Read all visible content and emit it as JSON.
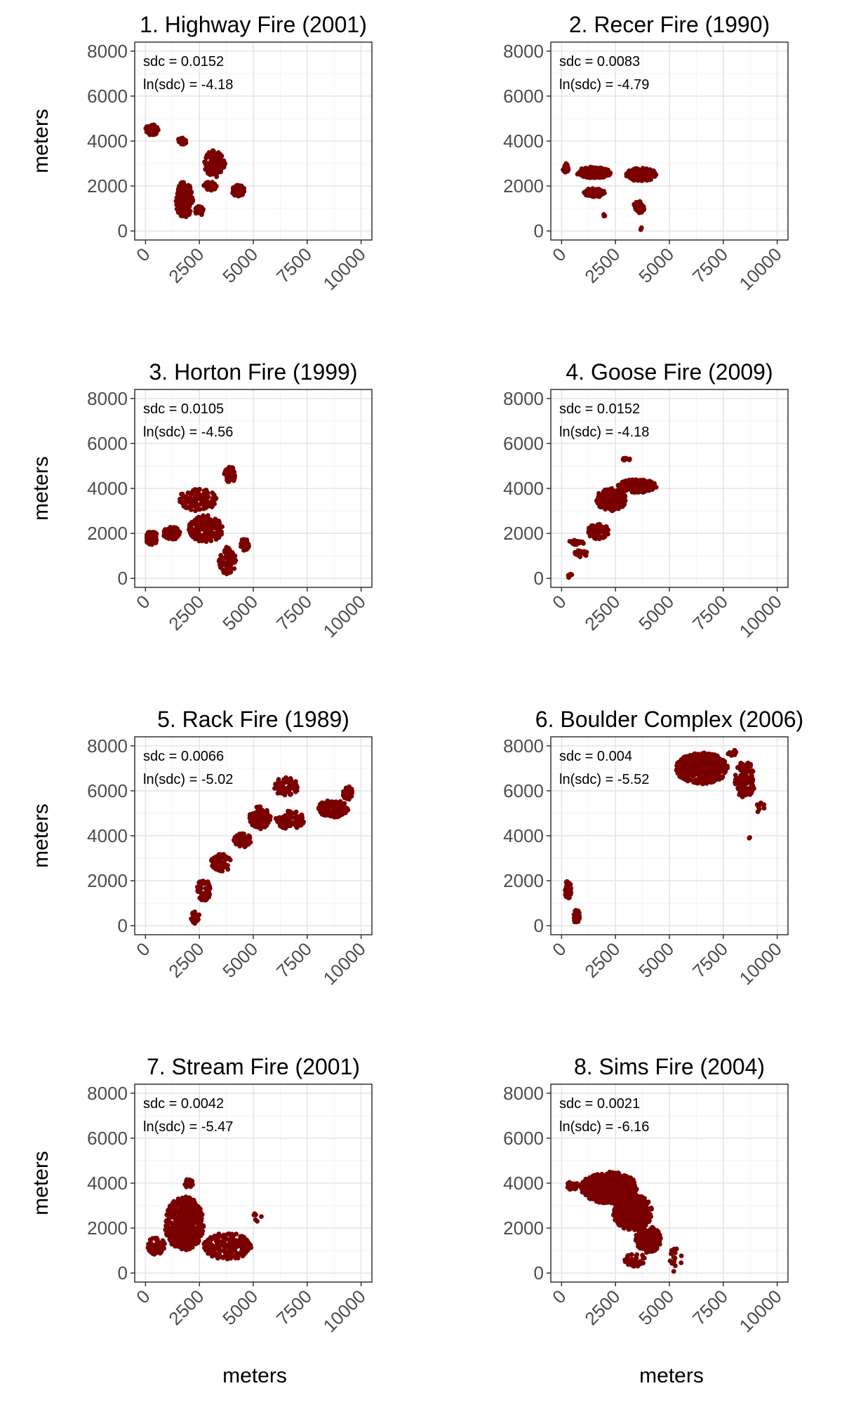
{
  "figure": {
    "axis_label": "meters",
    "ylabel": "meters"
  },
  "colors": {
    "points": "#7a0000",
    "panel_border": "#333333",
    "grid_major": "#e6e6e6",
    "grid_minor": "#f2f2f2",
    "text": "#000000",
    "tick_text": "#4d4d4d"
  },
  "chart_data": [
    {
      "type": "scatter",
      "title": "1. Highway Fire (2001)",
      "annotations": [
        "sdc = 0.0152",
        "ln(sdc) =  -4.18"
      ],
      "xlim": [
        -500,
        10500
      ],
      "ylim": [
        -400,
        8400
      ],
      "xticks": [
        0,
        2500,
        5000,
        7500,
        10000
      ],
      "yticks": [
        0,
        2000,
        4000,
        6000,
        8000
      ],
      "grid": true,
      "clusters": [
        {
          "cx": 300,
          "cy": 4500,
          "rx": 300,
          "ry": 250,
          "n": 60
        },
        {
          "cx": 1700,
          "cy": 4000,
          "rx": 200,
          "ry": 150,
          "n": 30
        },
        {
          "cx": 3200,
          "cy": 3000,
          "rx": 500,
          "ry": 600,
          "n": 110
        },
        {
          "cx": 4300,
          "cy": 1800,
          "rx": 300,
          "ry": 250,
          "n": 70
        },
        {
          "cx": 1800,
          "cy": 1400,
          "rx": 400,
          "ry": 800,
          "n": 140
        },
        {
          "cx": 3000,
          "cy": 2000,
          "rx": 300,
          "ry": 200,
          "n": 40
        },
        {
          "cx": 2500,
          "cy": 900,
          "rx": 200,
          "ry": 200,
          "n": 30
        }
      ]
    },
    {
      "type": "scatter",
      "title": "2. Recer Fire (1990)",
      "annotations": [
        "sdc = 0.0083",
        "ln(sdc) =  -4.79"
      ],
      "xlim": [
        -500,
        10500
      ],
      "ylim": [
        -400,
        8400
      ],
      "xticks": [
        0,
        2500,
        5000,
        7500,
        10000
      ],
      "yticks": [
        0,
        2000,
        4000,
        6000,
        8000
      ],
      "grid": true,
      "clusters": [
        {
          "cx": 200,
          "cy": 2800,
          "rx": 150,
          "ry": 200,
          "n": 30
        },
        {
          "cx": 1500,
          "cy": 2600,
          "rx": 800,
          "ry": 250,
          "n": 140
        },
        {
          "cx": 1500,
          "cy": 1700,
          "rx": 500,
          "ry": 200,
          "n": 60
        },
        {
          "cx": 3700,
          "cy": 2500,
          "rx": 700,
          "ry": 300,
          "n": 120
        },
        {
          "cx": 3600,
          "cy": 1100,
          "rx": 250,
          "ry": 300,
          "n": 30
        },
        {
          "cx": 2000,
          "cy": 700,
          "rx": 60,
          "ry": 60,
          "n": 3
        },
        {
          "cx": 3700,
          "cy": 100,
          "rx": 50,
          "ry": 50,
          "n": 2
        }
      ]
    },
    {
      "type": "scatter",
      "title": "3. Horton Fire (1999)",
      "annotations": [
        "sdc = 0.0105",
        "ln(sdc) =  -4.56"
      ],
      "xlim": [
        -500,
        10500
      ],
      "ylim": [
        -400,
        8400
      ],
      "xticks": [
        0,
        2500,
        5000,
        7500,
        10000
      ],
      "yticks": [
        0,
        2000,
        4000,
        6000,
        8000
      ],
      "grid": true,
      "clusters": [
        {
          "cx": 300,
          "cy": 1800,
          "rx": 300,
          "ry": 300,
          "n": 60
        },
        {
          "cx": 1200,
          "cy": 2000,
          "rx": 400,
          "ry": 300,
          "n": 50
        },
        {
          "cx": 2400,
          "cy": 3500,
          "rx": 900,
          "ry": 500,
          "n": 120
        },
        {
          "cx": 2800,
          "cy": 2200,
          "rx": 800,
          "ry": 600,
          "n": 160
        },
        {
          "cx": 3900,
          "cy": 4600,
          "rx": 250,
          "ry": 400,
          "n": 50
        },
        {
          "cx": 3800,
          "cy": 800,
          "rx": 400,
          "ry": 600,
          "n": 80
        },
        {
          "cx": 4600,
          "cy": 1500,
          "rx": 200,
          "ry": 300,
          "n": 30
        }
      ]
    },
    {
      "type": "scatter",
      "title": "4. Goose Fire (2009)",
      "annotations": [
        "sdc = 0.0152",
        "ln(sdc) =  -4.18"
      ],
      "xlim": [
        -500,
        10500
      ],
      "ylim": [
        -400,
        8400
      ],
      "xticks": [
        0,
        2500,
        5000,
        7500,
        10000
      ],
      "yticks": [
        0,
        2000,
        4000,
        6000,
        8000
      ],
      "grid": true,
      "clusters": [
        {
          "cx": 2300,
          "cy": 3500,
          "rx": 700,
          "ry": 500,
          "n": 220
        },
        {
          "cx": 3500,
          "cy": 4100,
          "rx": 900,
          "ry": 300,
          "n": 150
        },
        {
          "cx": 1700,
          "cy": 2100,
          "rx": 500,
          "ry": 350,
          "n": 90
        },
        {
          "cx": 700,
          "cy": 1600,
          "rx": 400,
          "ry": 100,
          "n": 30
        },
        {
          "cx": 900,
          "cy": 1100,
          "rx": 300,
          "ry": 150,
          "n": 25
        },
        {
          "cx": 3000,
          "cy": 5300,
          "rx": 200,
          "ry": 60,
          "n": 10
        },
        {
          "cx": 400,
          "cy": 100,
          "rx": 100,
          "ry": 100,
          "n": 6
        }
      ]
    },
    {
      "type": "scatter",
      "title": "5. Rack Fire (1989)",
      "annotations": [
        "sdc = 0.0066",
        "ln(sdc) =  -5.02"
      ],
      "xlim": [
        -500,
        10500
      ],
      "ylim": [
        -400,
        8400
      ],
      "xticks": [
        0,
        2500,
        5000,
        7500,
        10000
      ],
      "yticks": [
        0,
        2000,
        4000,
        6000,
        8000
      ],
      "grid": true,
      "clusters": [
        {
          "cx": 2300,
          "cy": 400,
          "rx": 200,
          "ry": 300,
          "n": 30
        },
        {
          "cx": 2700,
          "cy": 1600,
          "rx": 300,
          "ry": 600,
          "n": 60
        },
        {
          "cx": 3500,
          "cy": 2800,
          "rx": 500,
          "ry": 400,
          "n": 70
        },
        {
          "cx": 4500,
          "cy": 3800,
          "rx": 400,
          "ry": 300,
          "n": 60
        },
        {
          "cx": 5300,
          "cy": 4800,
          "rx": 500,
          "ry": 500,
          "n": 110
        },
        {
          "cx": 6700,
          "cy": 4700,
          "rx": 700,
          "ry": 400,
          "n": 90
        },
        {
          "cx": 6500,
          "cy": 6200,
          "rx": 600,
          "ry": 400,
          "n": 70
        },
        {
          "cx": 8700,
          "cy": 5200,
          "rx": 700,
          "ry": 400,
          "n": 130
        },
        {
          "cx": 9400,
          "cy": 5900,
          "rx": 250,
          "ry": 300,
          "n": 40
        }
      ]
    },
    {
      "type": "scatter",
      "title": "6. Boulder Complex (2006)",
      "annotations": [
        "sdc = 0.004",
        "ln(sdc) =  -5.52"
      ],
      "xlim": [
        -500,
        10500
      ],
      "ylim": [
        -400,
        8400
      ],
      "xticks": [
        0,
        2500,
        5000,
        7500,
        10000
      ],
      "yticks": [
        0,
        2000,
        4000,
        6000,
        8000
      ],
      "grid": true,
      "clusters": [
        {
          "cx": 6500,
          "cy": 7000,
          "rx": 1200,
          "ry": 700,
          "n": 400
        },
        {
          "cx": 8500,
          "cy": 6500,
          "rx": 500,
          "ry": 800,
          "n": 120
        },
        {
          "cx": 7900,
          "cy": 7700,
          "rx": 200,
          "ry": 150,
          "n": 15
        },
        {
          "cx": 9200,
          "cy": 5300,
          "rx": 200,
          "ry": 300,
          "n": 8
        },
        {
          "cx": 8700,
          "cy": 3900,
          "rx": 40,
          "ry": 40,
          "n": 2
        },
        {
          "cx": 300,
          "cy": 1600,
          "rx": 150,
          "ry": 400,
          "n": 50
        },
        {
          "cx": 700,
          "cy": 400,
          "rx": 150,
          "ry": 300,
          "n": 35
        }
      ]
    },
    {
      "type": "scatter",
      "title": "7. Stream Fire (2001)",
      "annotations": [
        "sdc = 0.0042",
        "ln(sdc) =  -5.47"
      ],
      "xlim": [
        -500,
        10500
      ],
      "ylim": [
        -400,
        8400
      ],
      "xticks": [
        0,
        2500,
        5000,
        7500,
        10000
      ],
      "yticks": [
        0,
        2000,
        4000,
        6000,
        8000
      ],
      "grid": true,
      "clusters": [
        {
          "cx": 1800,
          "cy": 2200,
          "rx": 900,
          "ry": 1200,
          "n": 450
        },
        {
          "cx": 500,
          "cy": 1200,
          "rx": 400,
          "ry": 400,
          "n": 80
        },
        {
          "cx": 3800,
          "cy": 1200,
          "rx": 1100,
          "ry": 600,
          "n": 180
        },
        {
          "cx": 2000,
          "cy": 4000,
          "rx": 200,
          "ry": 200,
          "n": 15
        },
        {
          "cx": 5200,
          "cy": 2500,
          "rx": 200,
          "ry": 200,
          "n": 6
        }
      ]
    },
    {
      "type": "scatter",
      "title": "8. Sims Fire (2004)",
      "annotations": [
        "sdc = 0.0021",
        "ln(sdc) =  -6.16"
      ],
      "xlim": [
        -500,
        10500
      ],
      "ylim": [
        -400,
        8400
      ],
      "xticks": [
        0,
        2500,
        5000,
        7500,
        10000
      ],
      "yticks": [
        0,
        2000,
        4000,
        6000,
        8000
      ],
      "grid": true,
      "clusters": [
        {
          "cx": 2200,
          "cy": 3800,
          "rx": 1300,
          "ry": 700,
          "n": 450
        },
        {
          "cx": 3300,
          "cy": 2700,
          "rx": 900,
          "ry": 800,
          "n": 350
        },
        {
          "cx": 4000,
          "cy": 1500,
          "rx": 600,
          "ry": 600,
          "n": 150
        },
        {
          "cx": 3400,
          "cy": 600,
          "rx": 500,
          "ry": 300,
          "n": 40
        },
        {
          "cx": 5300,
          "cy": 600,
          "rx": 300,
          "ry": 600,
          "n": 15
        },
        {
          "cx": 500,
          "cy": 3900,
          "rx": 250,
          "ry": 200,
          "n": 30
        }
      ]
    }
  ]
}
